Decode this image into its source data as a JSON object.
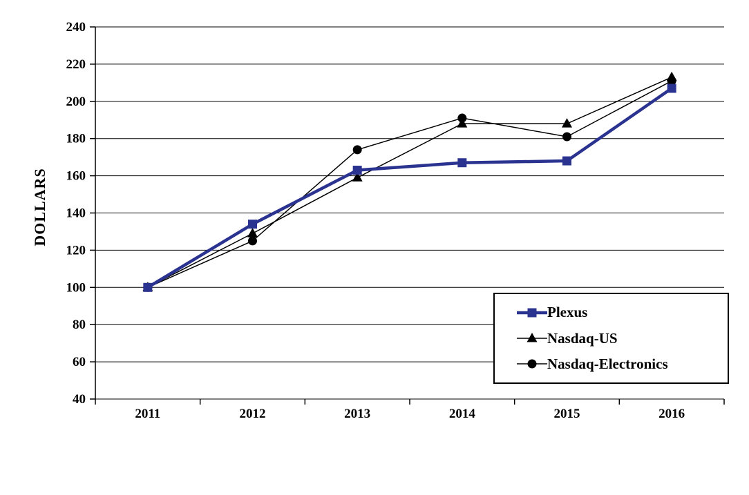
{
  "chart_data": {
    "type": "line",
    "title": "",
    "xlabel": "",
    "ylabel": "DOLLARS",
    "categories": [
      "2011",
      "2012",
      "2013",
      "2014",
      "2015",
      "2016"
    ],
    "series": [
      {
        "name": "Plexus",
        "values": [
          100,
          134,
          163,
          167,
          168,
          207
        ],
        "color": "#2B3390",
        "marker": "square",
        "line_width": 4.5
      },
      {
        "name": "Nasdaq-US",
        "values": [
          100,
          129,
          159,
          188,
          188,
          213
        ],
        "color": "#000000",
        "marker": "triangle",
        "line_width": 1.5
      },
      {
        "name": "Nasdaq-Electronics",
        "values": [
          100,
          125,
          174,
          191,
          181,
          211
        ],
        "color": "#000000",
        "marker": "circle",
        "line_width": 1.5
      }
    ],
    "ylim": [
      40,
      240
    ],
    "ytick_step": 20,
    "grid": true,
    "grid_color": "#000000",
    "legend_position": "bottom-right"
  }
}
